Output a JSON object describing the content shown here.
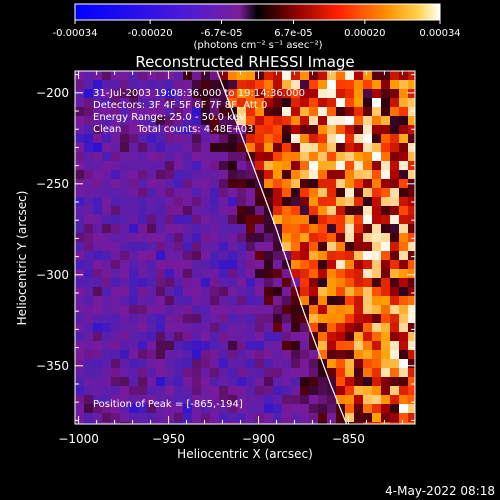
{
  "colorbar": {
    "ticks": [
      "-0.00034",
      "-0.00020",
      "-6.7e-05",
      "6.7e-05",
      "0.00020",
      "0.00034"
    ],
    "tick_values": [
      -0.00034,
      -0.0002,
      -6.7e-05,
      6.7e-05,
      0.0002,
      0.00034
    ],
    "range": [
      -0.00034,
      0.00034
    ],
    "units": "(photons cm⁻² s⁻¹ asec⁻²)"
  },
  "chart_data": {
    "type": "heatmap",
    "title": "Reconstructed RHESSI Image",
    "xlabel": "Heliocentric X (arcsec)",
    "ylabel": "Heliocentric Y (arcsec)",
    "xlim": [
      -1002,
      -813
    ],
    "ylim": [
      -382,
      -188
    ],
    "xticks": [
      -1000,
      -950,
      -900,
      -850
    ],
    "yticks": [
      -200,
      -250,
      -300,
      -350
    ],
    "colorscale": [
      "#0000ff",
      "#5020b0",
      "#7a1a9c",
      "#2a0010",
      "#b00000",
      "#ff3c00",
      "#ffa000",
      "#ffffff"
    ],
    "limb": [
      [
        -923,
        -188
      ],
      [
        -905,
        -235
      ],
      [
        -890,
        -275
      ],
      [
        -875,
        -320
      ],
      [
        -860,
        -360
      ],
      [
        -851,
        -382
      ]
    ],
    "peak": {
      "x": -865,
      "y": -194
    },
    "annotations": [
      "31-Jul-2003 19:08:36.000 to 19:14:36.000",
      "Detectors: 3F 4F 5F 6F 7F 8F, Att 0",
      "Energy Range: 25.0 - 50.0 keV",
      "Clean     Total counts: 4.48E+03"
    ],
    "peak_label": "Position of Peak = [-865,-194]"
  },
  "footer": {
    "timestamp": "4-May-2022 08:18"
  }
}
